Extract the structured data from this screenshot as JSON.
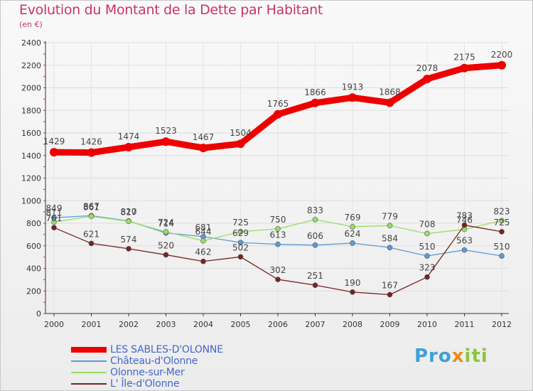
{
  "title": "Evolution du Montant de la Dette par Habitant",
  "subtitle": "(en €)",
  "colors": {
    "title": "#cc3366",
    "legend_text": "#4466cc",
    "axis": "#333333",
    "grid": "#dddddd"
  },
  "chart_data": {
    "type": "line",
    "title": "Evolution du Montant de la Dette par Habitant",
    "subtitle": "(en €)",
    "x": [
      "2000",
      "2001",
      "2002",
      "2003",
      "2004",
      "2005",
      "2006",
      "2007",
      "2008",
      "2009",
      "2010",
      "2011",
      "2012"
    ],
    "ylim": [
      0,
      2400
    ],
    "yticks": [
      0,
      200,
      400,
      600,
      800,
      1000,
      1200,
      1400,
      1600,
      1800,
      2000,
      2200,
      2400
    ],
    "grid": true,
    "legend": "bottom-left",
    "series": [
      {
        "name": "LES SABLES-D'OLONNE",
        "color": "#ee0000",
        "thick": true,
        "values": [
          1429,
          1426,
          1474,
          1523,
          1467,
          1504,
          1765,
          1866,
          1913,
          1868,
          2078,
          2175,
          2200
        ]
      },
      {
        "name": "Château-d'Olonne",
        "color": "#5b9bd5",
        "thick": false,
        "values": [
          849,
          867,
          820,
          714,
          681,
          629,
          613,
          606,
          624,
          584,
          510,
          563,
          510
        ]
      },
      {
        "name": "Olonne-sur-Mer",
        "color": "#99dd66",
        "thick": false,
        "values": [
          811,
          861,
          817,
          724,
          644,
          725,
          750,
          833,
          769,
          779,
          708,
          746,
          823
        ]
      },
      {
        "name": "L' Île-d'Olonne",
        "color": "#772222",
        "thick": false,
        "values": [
          761,
          621,
          574,
          520,
          462,
          502,
          302,
          251,
          190,
          167,
          323,
          783,
          725
        ]
      }
    ]
  },
  "logo": {
    "p1": "Pro",
    "p2": "x",
    "p3": "iti"
  }
}
